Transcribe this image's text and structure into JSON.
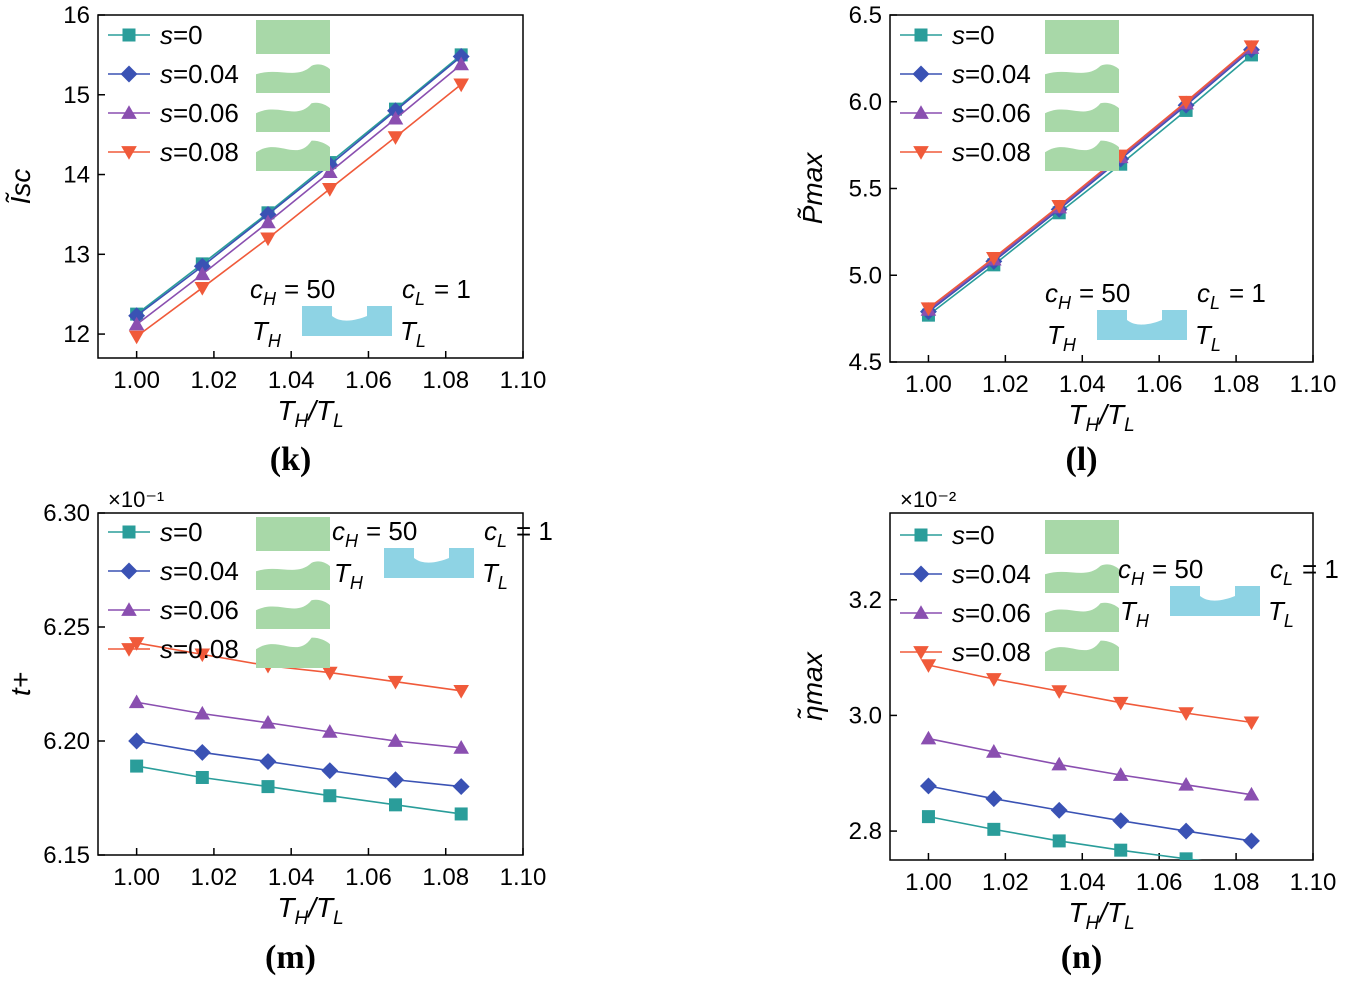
{
  "figure": {
    "colors": {
      "s0": "#2a9d9a",
      "s004": "#3a52b4",
      "s006": "#8a4fb0",
      "s008": "#f05a3a",
      "shape_green": "#a8d8a8",
      "shape_blue": "#8ed3e4"
    }
  },
  "chart_data": [
    {
      "type": "line",
      "panel_label": "(k)",
      "ylabel": "Ĩsc",
      "xlabel": "TH/TL",
      "xlim": [
        0.99,
        1.1
      ],
      "ylim": [
        11.7,
        16
      ],
      "xticks": [
        "1.00",
        "1.02",
        "1.04",
        "1.06",
        "1.08",
        "1.10"
      ],
      "yticks": [
        "12",
        "13",
        "14",
        "15",
        "16"
      ],
      "multiplier": "",
      "annotation": {
        "cH": "cH = 50",
        "cL": "cL = 1",
        "TH": "TH",
        "TL": "TL"
      },
      "legend": [
        "s=0",
        "s=0.04",
        "s=0.06",
        "s=0.08"
      ],
      "x": [
        1.0,
        1.017,
        1.034,
        1.05,
        1.067,
        1.084
      ],
      "series": [
        {
          "name": "s=0",
          "marker": "square",
          "values": [
            12.25,
            12.88,
            13.52,
            14.15,
            14.82,
            15.5
          ]
        },
        {
          "name": "s=0.04",
          "marker": "diamond",
          "values": [
            12.23,
            12.85,
            13.5,
            14.12,
            14.8,
            15.48
          ]
        },
        {
          "name": "s=0.06",
          "marker": "triangle-up",
          "values": [
            12.12,
            12.75,
            13.4,
            14.03,
            14.7,
            15.38
          ]
        },
        {
          "name": "s=0.08",
          "marker": "triangle-down",
          "values": [
            11.97,
            12.58,
            13.2,
            13.82,
            14.47,
            15.13
          ]
        }
      ]
    },
    {
      "type": "line",
      "panel_label": "(l)",
      "ylabel": "P̃max",
      "xlabel": "TH/TL",
      "xlim": [
        0.99,
        1.1
      ],
      "ylim": [
        4.5,
        6.5
      ],
      "xticks": [
        "1.00",
        "1.02",
        "1.04",
        "1.06",
        "1.08",
        "1.10"
      ],
      "yticks": [
        "4.5",
        "5.0",
        "5.5",
        "6.0",
        "6.5"
      ],
      "multiplier": "",
      "annotation": {
        "cH": "cH = 50",
        "cL": "cL = 1",
        "TH": "TH",
        "TL": "TL"
      },
      "legend": [
        "s=0",
        "s=0.04",
        "s=0.06",
        "s=0.08"
      ],
      "x": [
        1.0,
        1.017,
        1.034,
        1.05,
        1.067,
        1.084
      ],
      "series": [
        {
          "name": "s=0",
          "marker": "square",
          "values": [
            4.77,
            5.06,
            5.36,
            5.64,
            5.95,
            6.27
          ]
        },
        {
          "name": "s=0.04",
          "marker": "diamond",
          "values": [
            4.79,
            5.08,
            5.38,
            5.67,
            5.98,
            6.3
          ]
        },
        {
          "name": "s=0.06",
          "marker": "triangle-up",
          "values": [
            4.8,
            5.09,
            5.39,
            5.68,
            5.99,
            6.31
          ]
        },
        {
          "name": "s=0.08",
          "marker": "triangle-down",
          "values": [
            4.81,
            5.1,
            5.4,
            5.69,
            6.0,
            6.32
          ]
        }
      ]
    },
    {
      "type": "line",
      "panel_label": "(m)",
      "ylabel": "t+",
      "xlabel": "TH/TL",
      "xlim": [
        0.99,
        1.1
      ],
      "ylim": [
        6.15,
        6.3
      ],
      "xticks": [
        "1.00",
        "1.02",
        "1.04",
        "1.06",
        "1.08",
        "1.10"
      ],
      "yticks": [
        "6.15",
        "6.20",
        "6.25",
        "6.30"
      ],
      "multiplier": "×10⁻¹",
      "annotation": {
        "cH": "cH = 50",
        "cL": "cL = 1",
        "TH": "TH",
        "TL": "TL"
      },
      "legend": [
        "s=0",
        "s=0.04",
        "s=0.06",
        "s=0.08"
      ],
      "x": [
        1.0,
        1.017,
        1.034,
        1.05,
        1.067,
        1.084
      ],
      "series": [
        {
          "name": "s=0",
          "marker": "square",
          "values": [
            6.189,
            6.184,
            6.18,
            6.176,
            6.172,
            6.168
          ]
        },
        {
          "name": "s=0.04",
          "marker": "diamond",
          "values": [
            6.2,
            6.195,
            6.191,
            6.187,
            6.183,
            6.18
          ]
        },
        {
          "name": "s=0.06",
          "marker": "triangle-up",
          "values": [
            6.217,
            6.212,
            6.208,
            6.204,
            6.2,
            6.197
          ]
        },
        {
          "name": "s=0.08",
          "marker": "triangle-down",
          "values": [
            6.243,
            6.238,
            6.233,
            6.23,
            6.226,
            6.222
          ]
        }
      ]
    },
    {
      "type": "line",
      "panel_label": "(n)",
      "ylabel": "η̃max",
      "xlabel": "TH/TL",
      "xlim": [
        0.99,
        1.1
      ],
      "ylim": [
        2.75,
        3.35
      ],
      "xticks": [
        "1.00",
        "1.02",
        "1.04",
        "1.06",
        "1.08",
        "1.10"
      ],
      "yticks": [
        "2.8",
        "3.0",
        "3.2"
      ],
      "multiplier": "×10⁻²",
      "annotation": {
        "cH": "cH = 50",
        "cL": "cL = 1",
        "TH": "TH",
        "TL": "TL"
      },
      "legend": [
        "s=0",
        "s=0.04",
        "s=0.06",
        "s=0.08"
      ],
      "x": [
        1.0,
        1.017,
        1.034,
        1.05,
        1.067,
        1.084
      ],
      "series": [
        {
          "name": "s=0",
          "marker": "square",
          "values": [
            2.825,
            2.803,
            2.783,
            2.767,
            2.752,
            2.738
          ]
        },
        {
          "name": "s=0.04",
          "marker": "diamond",
          "values": [
            2.878,
            2.856,
            2.836,
            2.818,
            2.8,
            2.783
          ]
        },
        {
          "name": "s=0.06",
          "marker": "triangle-up",
          "values": [
            2.96,
            2.937,
            2.915,
            2.897,
            2.88,
            2.863
          ]
        },
        {
          "name": "s=0.08",
          "marker": "triangle-down",
          "values": [
            3.087,
            3.063,
            3.042,
            3.022,
            3.004,
            2.988
          ]
        }
      ]
    }
  ]
}
